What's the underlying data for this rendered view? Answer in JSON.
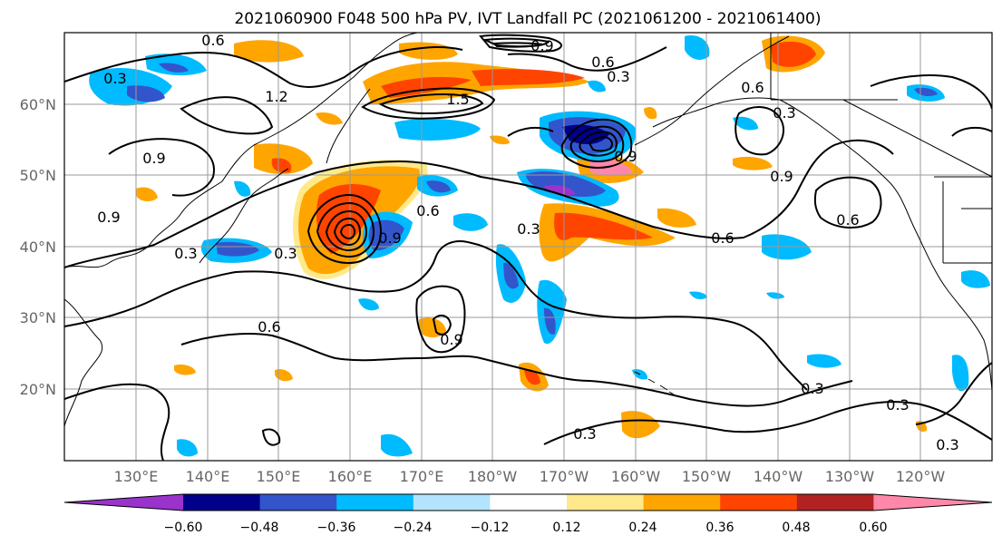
{
  "title": "2021060900 F048 500 hPa PV, IVT Landfall PC (2021061200 - 2021061400)",
  "map": {
    "lat_labels": [
      "60°N",
      "50°N",
      "40°N",
      "30°N",
      "20°N"
    ],
    "lon_labels": [
      "130°E",
      "140°E",
      "150°E",
      "160°E",
      "170°E",
      "180°W",
      "170°W",
      "160°W",
      "150°W",
      "140°W",
      "130°W",
      "120°W"
    ],
    "contour_labels": [
      "0.3",
      "0.9",
      "1.2",
      "1.5",
      "0.9",
      "0.6",
      "0.3",
      "0.9",
      "0.9",
      "0.3",
      "0.6",
      "0.3",
      "0.9",
      "0.6",
      "0.6",
      "0.3",
      "0.6",
      "0.9",
      "0.6",
      "0.3",
      "0.3",
      "0.3",
      "0.3",
      "0.6",
      "0.9",
      "0.3"
    ]
  },
  "colorbar": {
    "tick_labels": [
      "−0.60",
      "−0.48",
      "−0.36",
      "−0.24",
      "−0.12",
      "0.12",
      "0.24",
      "0.36",
      "0.48",
      "0.60"
    ],
    "colors": [
      "#9933cc",
      "#000088",
      "#3355cc",
      "#00bbff",
      "#b3e4ff",
      "#ffffff",
      "#ffe98a",
      "#ffa500",
      "#ff4400",
      "#b22222",
      "#ff88aa"
    ]
  }
}
